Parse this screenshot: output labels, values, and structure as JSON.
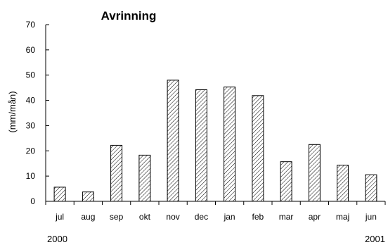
{
  "chart_data": {
    "type": "bar",
    "title": "Avrinning",
    "ylabel": "(mm/mån)",
    "xlabel": "",
    "categories": [
      "jul",
      "aug",
      "sep",
      "okt",
      "nov",
      "dec",
      "jan",
      "feb",
      "mar",
      "apr",
      "maj",
      "jun"
    ],
    "values": [
      5.6,
      3.7,
      22.2,
      18.3,
      48.0,
      44.2,
      45.3,
      41.9,
      15.7,
      22.5,
      14.3,
      10.5
    ],
    "ylim": [
      0,
      70
    ],
    "yticks": [
      "0",
      "10",
      "20",
      "30",
      "40",
      "50",
      "60",
      "70"
    ],
    "grid": false,
    "bar_fill": "hatched",
    "colors": {
      "bar_edge": "#000000",
      "hatch": "#000000",
      "background": "#ffffff"
    }
  },
  "year_labels": {
    "start": "2000",
    "end": "2001"
  }
}
